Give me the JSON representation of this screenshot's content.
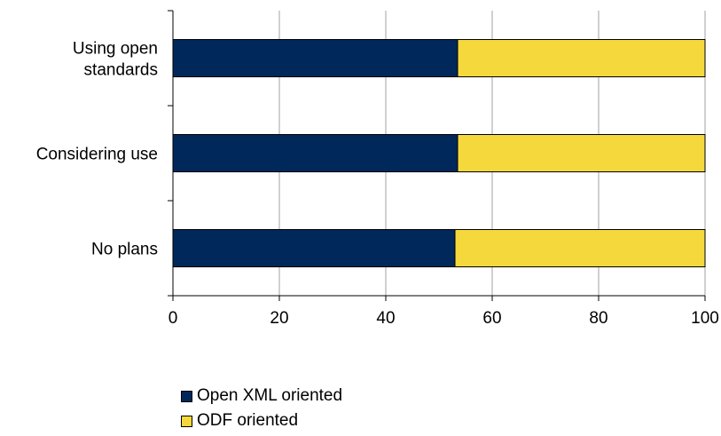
{
  "chart_data": {
    "type": "bar",
    "orientation": "horizontal",
    "stacked": true,
    "categories": [
      "Using open standards",
      "Considering use",
      "No plans"
    ],
    "category_lines": [
      [
        "Using open",
        "standards"
      ],
      [
        "Considering use"
      ],
      [
        "No plans"
      ]
    ],
    "series": [
      {
        "name": "Open XML oriented",
        "values": [
          53.5,
          53.5,
          53
        ],
        "color": "#00285a"
      },
      {
        "name": "ODF oriented",
        "values": [
          46.5,
          46.5,
          47
        ],
        "color": "#f5d93c"
      }
    ],
    "xlim": [
      0,
      100
    ],
    "xticks": [
      0,
      20,
      40,
      60,
      80,
      100
    ],
    "grid": true,
    "legend_position": "bottom-left"
  }
}
